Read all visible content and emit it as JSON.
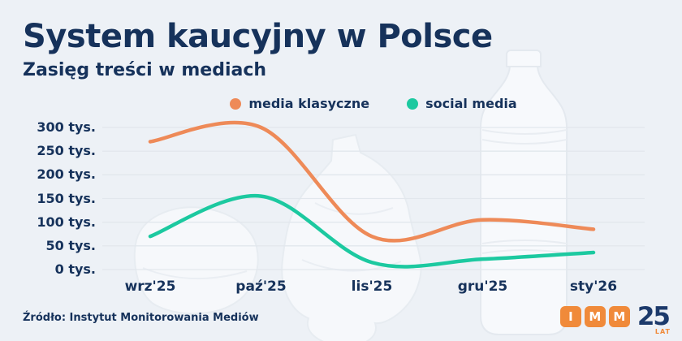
{
  "title": "System kaucyjny w Polsce",
  "subtitle": "Zasięg treści w mediach",
  "source": "Źródło: Instytut Monitorowania Mediów",
  "logo": {
    "letters": [
      "I",
      "M",
      "M"
    ],
    "years": "25",
    "years_suffix": "LAT"
  },
  "colors": {
    "background": "#edf1f6",
    "navy": "#16325b",
    "orange": "#ee8a58",
    "teal": "#1cc9a0",
    "grid": "#e2e7ed"
  },
  "chart_data": {
    "type": "line",
    "x": [
      "wrz'25",
      "paź'25",
      "lis'25",
      "gru'25",
      "sty'26"
    ],
    "series": [
      {
        "name": "media klasyczne",
        "color": "#ee8a58",
        "values": [
          270,
          300,
          70,
          105,
          85
        ]
      },
      {
        "name": "social media",
        "color": "#1cc9a0",
        "values": [
          70,
          155,
          15,
          22,
          36
        ]
      }
    ],
    "y_ticks": [
      300,
      250,
      200,
      150,
      100,
      50,
      0
    ],
    "y_tick_suffix": " tys.",
    "ylabel": "",
    "xlabel": "",
    "ylim": [
      0,
      300
    ],
    "grid": true,
    "legend_position": "top"
  }
}
